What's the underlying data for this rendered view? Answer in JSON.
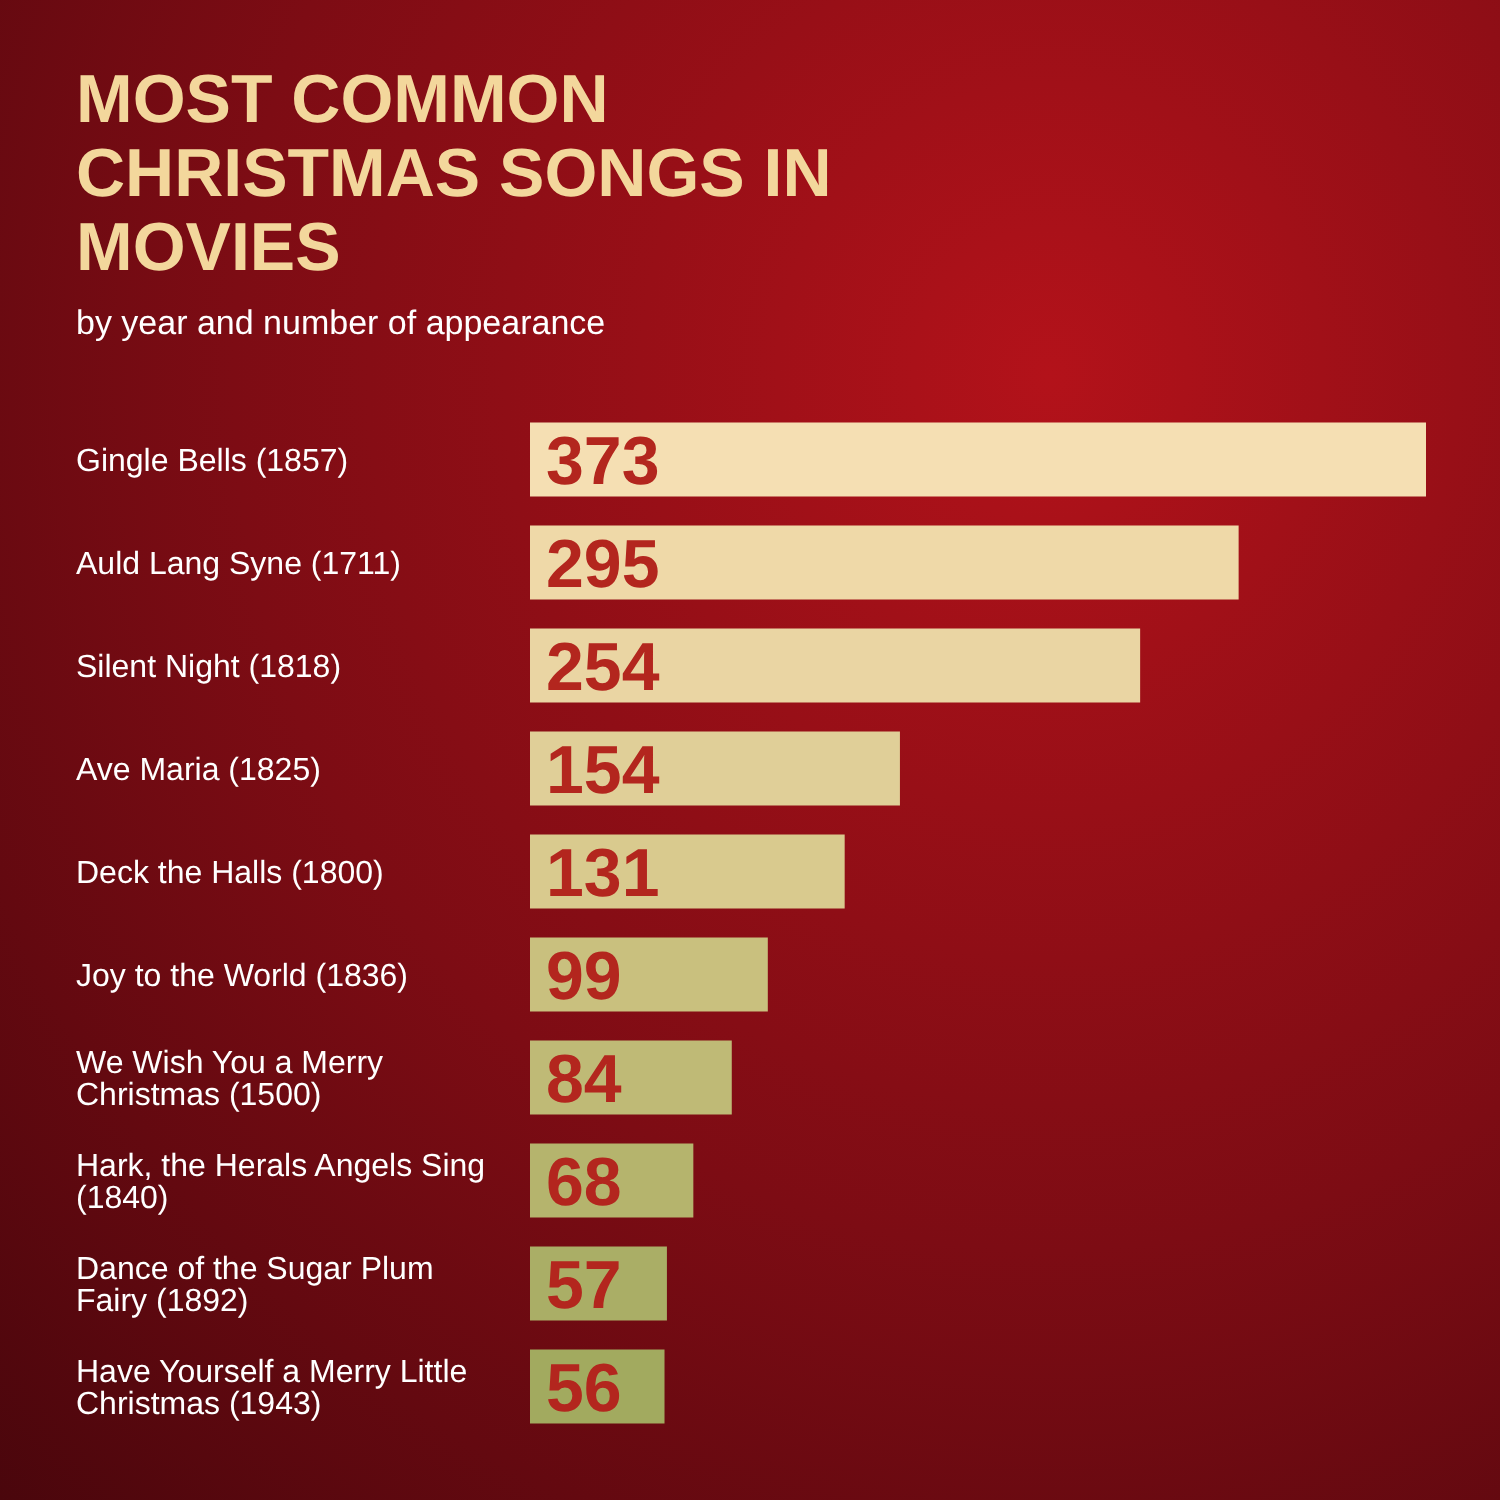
{
  "chart_data": {
    "type": "bar",
    "orientation": "horizontal",
    "title": "MOST COMMON CHRISTMAS SONGS IN MOVIES",
    "subtitle": "by year and number of appearance",
    "categories": [
      "Gingle Bells (1857)",
      "Auld Lang Syne (1711)",
      "Silent Night (1818)",
      "Ave Maria (1825)",
      "Deck the Halls (1800)",
      "Joy to the World (1836)",
      "We Wish You a Merry Christmas (1500)",
      "Hark, the Herals Angels Sing (1840)",
      "Dance of the Sugar Plum Fairy (1892)",
      "Have Yourself a Merry Little Christmas (1943)"
    ],
    "values": [
      373,
      295,
      254,
      154,
      131,
      99,
      84,
      68,
      57,
      56
    ],
    "colors": [
      "#f5dfb3",
      "#efd9a8",
      "#ead5a3",
      "#e0cf98",
      "#d9ca8e",
      "#c9c07e",
      "#bfba76",
      "#b5b46d",
      "#aaae66",
      "#a2aa5f"
    ],
    "data_labels": true
  }
}
